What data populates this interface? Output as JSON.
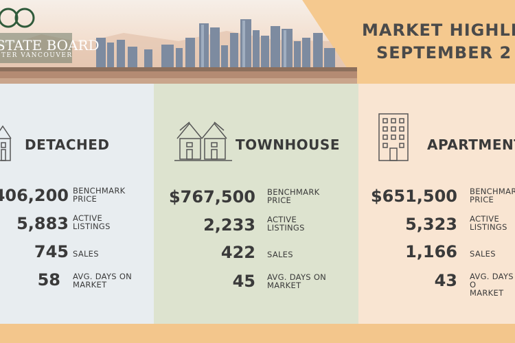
{
  "header": {
    "title_line1": "MARKET HIGHLIGH",
    "title_line2": "SEPTEMBER 2",
    "logo_line1": "STATE BOARD",
    "logo_line2": "TER VANCOUVER"
  },
  "colors": {
    "detached_bg": "#e8edf0",
    "townhouse_bg": "#dde3cf",
    "apartment_bg": "#f9e5d2",
    "header_banner": "#f5c98f",
    "footer_bar": "#f3c68c"
  },
  "columns": [
    {
      "title": "DETACHED",
      "icon": "house-icon",
      "stats": [
        {
          "value": "406,200",
          "label": "BENCHMARK\nPRICE"
        },
        {
          "value": "5,883",
          "label": "ACTIVE\nLISTINGS"
        },
        {
          "value": "745",
          "label": "SALES"
        },
        {
          "value": "58",
          "label": "AVG. DAYS ON\nMARKET"
        }
      ]
    },
    {
      "title": "TOWNHOUSE",
      "icon": "townhouse-icon",
      "stats": [
        {
          "value": "$767,500",
          "label": "BENCHMARK\nPRICE"
        },
        {
          "value": "2,233",
          "label": "ACTIVE\nLISTINGS"
        },
        {
          "value": "422",
          "label": "SALES"
        },
        {
          "value": "45",
          "label": "AVG. DAYS ON\nMARKET"
        }
      ]
    },
    {
      "title": "APARTMENT",
      "icon": "apartment-building-icon",
      "stats": [
        {
          "value": "$651,500",
          "label": "BENCHMARK\nPRICE"
        },
        {
          "value": "5,323",
          "label": "ACTIVE\nLISTINGS"
        },
        {
          "value": "1,166",
          "label": "SALES"
        },
        {
          "value": "43",
          "label": "AVG. DAYS O\nMARKET"
        }
      ]
    }
  ]
}
